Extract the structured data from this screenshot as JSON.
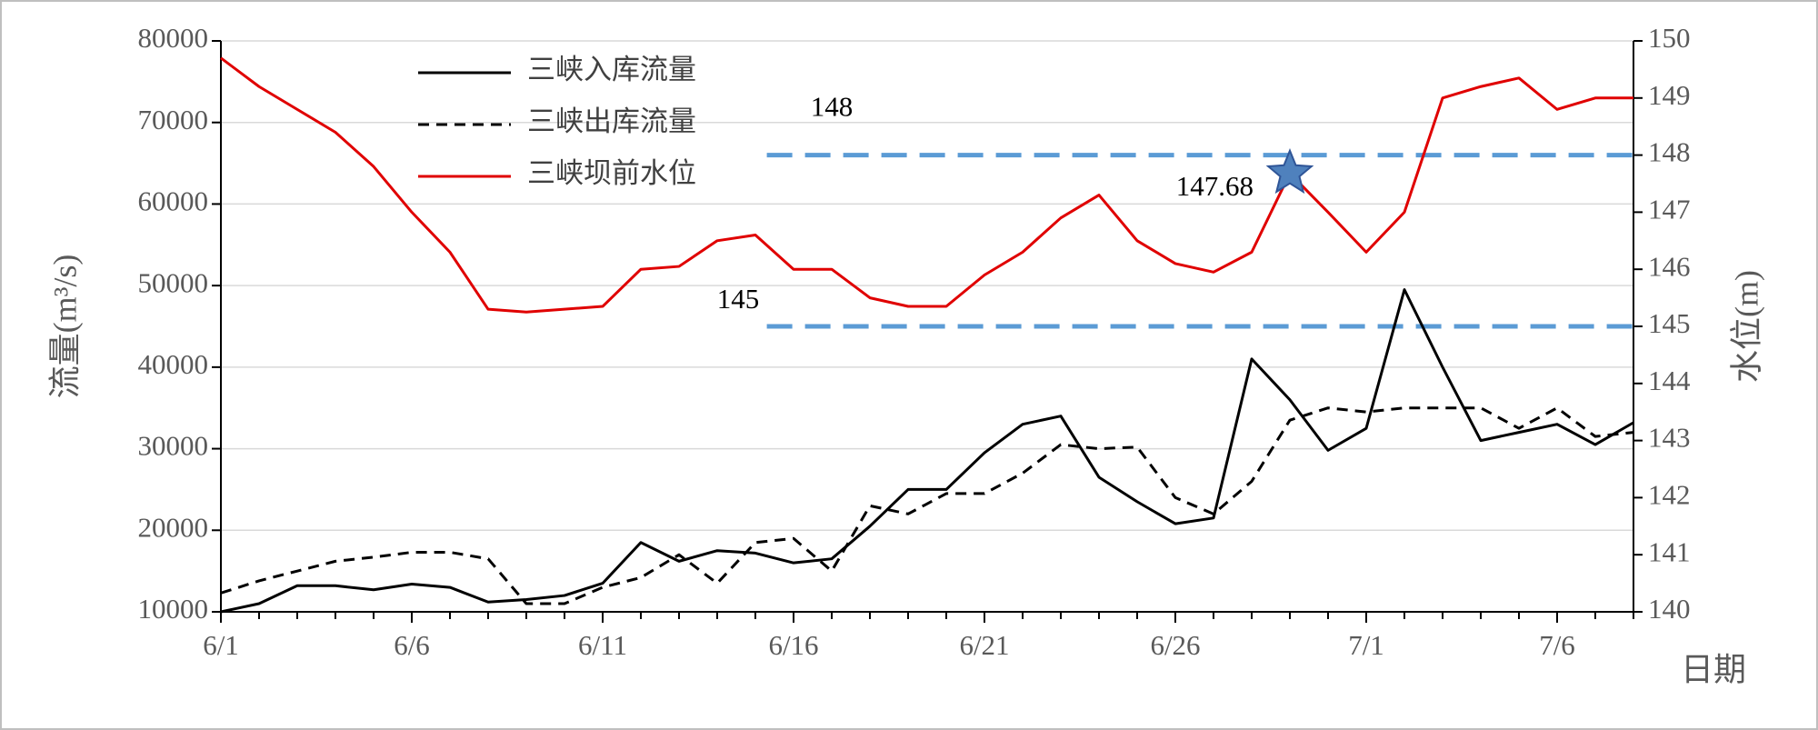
{
  "chart_data": {
    "type": "line",
    "categories": [
      "6/1",
      null,
      null,
      null,
      null,
      "6/6",
      null,
      null,
      null,
      null,
      "6/11",
      null,
      null,
      null,
      null,
      "6/16",
      null,
      null,
      null,
      null,
      "6/21",
      null,
      null,
      null,
      null,
      "6/26",
      null,
      null,
      null,
      null,
      "7/1",
      null,
      null,
      null,
      null,
      "7/6",
      null,
      null
    ],
    "x_label": "日期",
    "y_label": "流量(m³/s)",
    "y2_label": "水位(m)",
    "ylim": [
      10000,
      80000
    ],
    "yticks": [
      10000,
      20000,
      30000,
      40000,
      50000,
      60000,
      70000,
      80000
    ],
    "y2lim": [
      140,
      150
    ],
    "y2ticks": [
      140,
      141,
      142,
      143,
      144,
      145,
      146,
      147,
      148,
      149,
      150
    ],
    "grid": true,
    "legend": "top-left",
    "series": [
      {
        "name": "三峡入库流量",
        "color": "#000000",
        "dash": "solid",
        "values": [
          10000,
          11000,
          13200,
          13200,
          12700,
          13400,
          13000,
          11200,
          11500,
          12000,
          13500,
          18500,
          16200,
          17500,
          17200,
          16000,
          16500,
          20500,
          25000,
          25000,
          29500,
          33000,
          34000,
          26500,
          23500,
          20800,
          21500,
          41000,
          36000,
          29800,
          32500,
          49500,
          40000,
          31000,
          32000,
          33000,
          30500,
          33200
        ]
      },
      {
        "name": "三峡出库流量",
        "color": "#000000",
        "dash": "dashed",
        "values": [
          12300,
          13800,
          15000,
          16200,
          16700,
          17300,
          17300,
          16500,
          11000,
          11000,
          13000,
          14200,
          17000,
          13500,
          18500,
          19000,
          15000,
          23000,
          22000,
          24500,
          24500,
          27000,
          30500,
          30000,
          30200,
          24000,
          22000,
          26000,
          33500,
          35000,
          34500,
          35000,
          35000,
          35000,
          32500,
          35000,
          31500,
          32000
        ]
      },
      {
        "name": "三峡坝前水位",
        "color": "#e00000",
        "dash": "solid",
        "axis": "y2",
        "values": [
          149.7,
          149.2,
          148.8,
          148.4,
          147.8,
          147.0,
          146.3,
          145.3,
          145.25,
          145.3,
          145.35,
          146.0,
          146.05,
          146.5,
          146.6,
          146.0,
          146.0,
          145.5,
          145.35,
          145.35,
          145.9,
          146.3,
          146.9,
          147.3,
          146.5,
          146.1,
          145.95,
          146.3,
          147.68,
          147.0,
          146.3,
          147.0,
          149.0,
          149.2,
          149.35,
          148.8,
          149.0,
          149.0
        ]
      }
    ],
    "reference_lines": [
      {
        "value": 148,
        "label": "148",
        "color": "#5b9bd5"
      },
      {
        "value": 145,
        "label": "145",
        "color": "#5b9bd5"
      }
    ],
    "annotations": [
      {
        "category": 28,
        "value": 147.68,
        "label": "147.68",
        "marker": "star",
        "color": "#4f81bd"
      }
    ]
  }
}
